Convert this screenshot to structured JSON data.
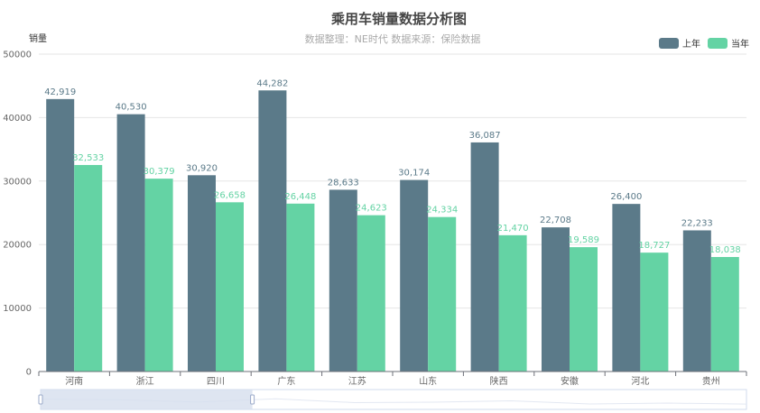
{
  "chart_data": {
    "type": "bar",
    "title": "乘用车销量数据分析图",
    "subtitle": "数据整理：NE时代 数据来源：保险数据",
    "ylabel": "销量",
    "xlabel": "",
    "ylim": [
      0,
      50000
    ],
    "yticks": [
      0,
      10000,
      20000,
      30000,
      40000,
      50000
    ],
    "grid": true,
    "legend_position": "top-right",
    "categories": [
      "河南",
      "浙江",
      "四川",
      "广东",
      "江苏",
      "山东",
      "陕西",
      "安徽",
      "河北",
      "贵州"
    ],
    "series": [
      {
        "name": "上年",
        "color": "#5b7a89",
        "values": [
          42919,
          40530,
          30920,
          44282,
          28633,
          30174,
          36087,
          22708,
          26400,
          22233
        ],
        "labels": [
          "42,919",
          "40,530",
          "30,920",
          "44,282",
          "28,633",
          "30,174",
          "36,087",
          "22,708",
          "26,400",
          "22,233"
        ]
      },
      {
        "name": "当年",
        "color": "#64d3a4",
        "values": [
          32533,
          30379,
          26658,
          26448,
          24623,
          24334,
          21470,
          19589,
          18727,
          18038
        ],
        "labels": [
          "32,533",
          "30,379",
          "26,658",
          "26,448",
          "24,623",
          "24,334",
          "21,470",
          "19,589",
          "18,727",
          "18,038"
        ]
      }
    ],
    "datazoom": {
      "start_fraction": 0.0,
      "end_fraction": 0.3
    }
  }
}
